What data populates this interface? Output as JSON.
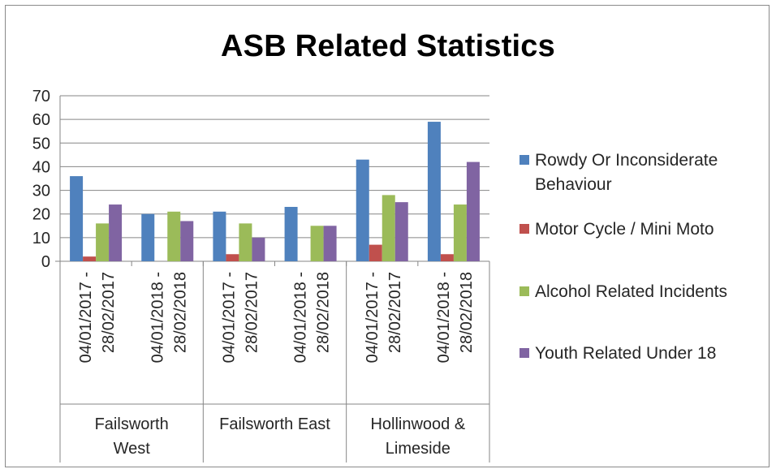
{
  "chart_data": {
    "type": "bar",
    "title": "ASB Related Statistics",
    "xlabel": "",
    "ylabel": "",
    "ylim": [
      0,
      70
    ],
    "yticks": [
      0,
      10,
      20,
      30,
      40,
      50,
      60,
      70
    ],
    "grid": true,
    "legend_position": "right",
    "categories": [
      {
        "area": "Failsworth West",
        "period": [
          "04/01/2017 -",
          "28/02/2017"
        ]
      },
      {
        "area": "Failsworth West",
        "period": [
          "04/01/2018 -",
          "28/02/2018"
        ]
      },
      {
        "area": "Failsworth East",
        "period": [
          "04/01/2017 -",
          "28/02/2017"
        ]
      },
      {
        "area": "Failsworth East",
        "period": [
          "04/01/2018 -",
          "28/02/2018"
        ]
      },
      {
        "area": "Hollinwood & Limeside",
        "period": [
          "04/01/2017 -",
          "28/02/2017"
        ]
      },
      {
        "area": "Hollinwood & Limeside",
        "period": [
          "04/01/2018 -",
          "28/02/2018"
        ]
      }
    ],
    "groups": [
      {
        "lines": [
          "Failsworth",
          "West"
        ]
      },
      {
        "lines": [
          "Failsworth East"
        ]
      },
      {
        "lines": [
          "Hollinwood &",
          "Limeside"
        ]
      }
    ],
    "series": [
      {
        "name": "Rowdy Or Inconsiderate Behaviour",
        "name_lines": [
          "Rowdy Or Inconsiderate",
          "Behaviour"
        ],
        "color": "#4f81bd",
        "values": [
          36,
          20,
          21,
          23,
          43,
          59
        ]
      },
      {
        "name": "Motor Cycle / Mini Moto",
        "name_lines": [
          "Motor Cycle / Mini Moto"
        ],
        "color": "#c0504d",
        "values": [
          2,
          0,
          3,
          0,
          7,
          3
        ]
      },
      {
        "name": "Alcohol Related Incidents",
        "name_lines": [
          "Alcohol Related Incidents"
        ],
        "color": "#9bbb59",
        "values": [
          16,
          21,
          16,
          15,
          28,
          24
        ]
      },
      {
        "name": "Youth Related Under 18",
        "name_lines": [
          "Youth Related Under 18"
        ],
        "color": "#8064a2",
        "values": [
          24,
          17,
          10,
          15,
          25,
          42
        ]
      }
    ]
  }
}
